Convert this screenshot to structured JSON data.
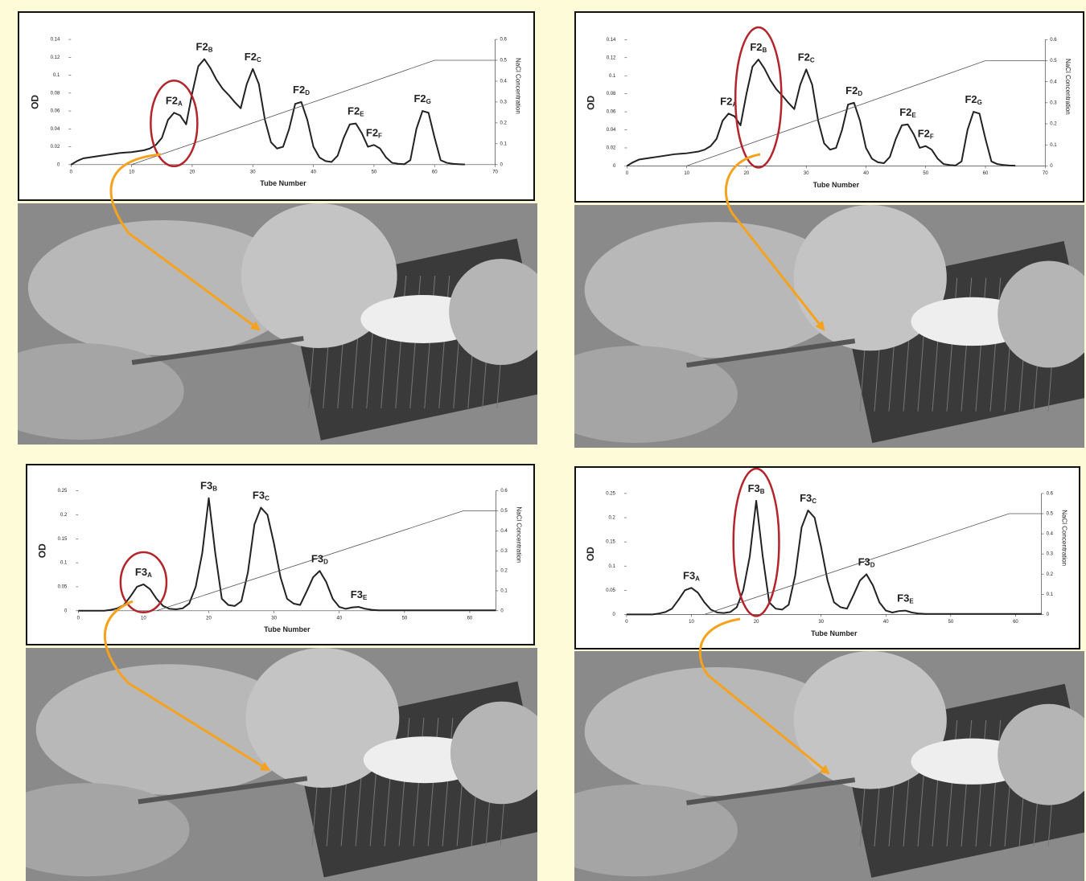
{
  "chart_data": [
    {
      "type": "line",
      "ylabel": "OD",
      "y2label": "NaCl Concentration",
      "xlabel": "Tube Number",
      "xlim": [
        0,
        70
      ],
      "xticks": [
        0,
        10,
        20,
        30,
        40,
        50,
        60,
        70
      ],
      "ylim": [
        0,
        0.14
      ],
      "yticks": [
        0,
        0.02,
        0.04,
        0.06,
        0.08,
        0.1,
        0.12,
        0.14
      ],
      "y2lim": [
        0,
        0.6
      ],
      "y2ticks": [
        0,
        0.1,
        0.2,
        0.3,
        0.4,
        0.5,
        0.6
      ],
      "series": [
        {
          "color": "#222222",
          "x": [
            0,
            1,
            2,
            3,
            4,
            5,
            6,
            7,
            8,
            9,
            10,
            11,
            12,
            13,
            14,
            15,
            16,
            17,
            18,
            19,
            20,
            21,
            22,
            23,
            24,
            25,
            26,
            27,
            28,
            29,
            30,
            31,
            32,
            33,
            34,
            35,
            36,
            37,
            38,
            39,
            40,
            41,
            42,
            43,
            44,
            45,
            46,
            47,
            48,
            49,
            50,
            51,
            52,
            53,
            54,
            55,
            56,
            57,
            58,
            59,
            60,
            61,
            62,
            63,
            64,
            65
          ],
          "values": [
            0,
            0.004,
            0.007,
            0.008,
            0.009,
            0.01,
            0.011,
            0.012,
            0.013,
            0.0135,
            0.014,
            0.015,
            0.016,
            0.018,
            0.022,
            0.03,
            0.05,
            0.058,
            0.055,
            0.045,
            0.08,
            0.11,
            0.118,
            0.108,
            0.095,
            0.085,
            0.078,
            0.07,
            0.063,
            0.09,
            0.107,
            0.09,
            0.05,
            0.025,
            0.018,
            0.02,
            0.04,
            0.068,
            0.07,
            0.05,
            0.02,
            0.008,
            0.004,
            0.003,
            0.01,
            0.03,
            0.045,
            0.046,
            0.035,
            0.02,
            0.022,
            0.018,
            0.008,
            0.002,
            0.001,
            0.0005,
            0.005,
            0.04,
            0.06,
            0.058,
            0.03,
            0.005,
            0.002,
            0.001,
            0.0005,
            0.0002
          ]
        },
        {
          "color": "#555555",
          "axis": "y2",
          "x": [
            10,
            60,
            70
          ],
          "values": [
            0,
            0.5,
            0.5
          ]
        }
      ],
      "annotations": [
        {
          "text": "F2",
          "sub": "A",
          "highlighted": true
        },
        {
          "text": "F2",
          "sub": "B"
        },
        {
          "text": "F2",
          "sub": "C"
        },
        {
          "text": "F2",
          "sub": "D"
        },
        {
          "text": "F2",
          "sub": "E"
        },
        {
          "text": "F2",
          "sub": "F"
        },
        {
          "text": "F2",
          "sub": "G"
        }
      ]
    },
    {
      "type": "line",
      "ylabel": "OD",
      "y2label": "NaCl Concentration",
      "xlabel": "Tube Number",
      "xlim": [
        0,
        70
      ],
      "xticks": [
        0,
        10,
        20,
        30,
        40,
        50,
        60,
        70
      ],
      "ylim": [
        0,
        0.14
      ],
      "yticks": [
        0,
        0.02,
        0.04,
        0.06,
        0.08,
        0.1,
        0.12,
        0.14
      ],
      "y2lim": [
        0,
        0.6
      ],
      "y2ticks": [
        0,
        0.1,
        0.2,
        0.3,
        0.4,
        0.5,
        0.6
      ],
      "series": [
        {
          "color": "#222222",
          "x": [
            0,
            1,
            2,
            3,
            4,
            5,
            6,
            7,
            8,
            9,
            10,
            11,
            12,
            13,
            14,
            15,
            16,
            17,
            18,
            19,
            20,
            21,
            22,
            23,
            24,
            25,
            26,
            27,
            28,
            29,
            30,
            31,
            32,
            33,
            34,
            35,
            36,
            37,
            38,
            39,
            40,
            41,
            42,
            43,
            44,
            45,
            46,
            47,
            48,
            49,
            50,
            51,
            52,
            53,
            54,
            55,
            56,
            57,
            58,
            59,
            60,
            61,
            62,
            63,
            64,
            65
          ],
          "values": [
            0,
            0.004,
            0.007,
            0.008,
            0.009,
            0.01,
            0.011,
            0.012,
            0.013,
            0.0135,
            0.014,
            0.015,
            0.016,
            0.018,
            0.022,
            0.03,
            0.05,
            0.058,
            0.055,
            0.045,
            0.08,
            0.11,
            0.118,
            0.108,
            0.095,
            0.085,
            0.078,
            0.07,
            0.063,
            0.09,
            0.107,
            0.09,
            0.05,
            0.025,
            0.018,
            0.02,
            0.04,
            0.068,
            0.07,
            0.05,
            0.02,
            0.008,
            0.004,
            0.003,
            0.01,
            0.03,
            0.045,
            0.046,
            0.035,
            0.02,
            0.022,
            0.018,
            0.008,
            0.002,
            0.001,
            0.0005,
            0.005,
            0.04,
            0.06,
            0.058,
            0.03,
            0.005,
            0.002,
            0.001,
            0.0005,
            0.0002
          ]
        },
        {
          "color": "#555555",
          "axis": "y2",
          "x": [
            10,
            60,
            70
          ],
          "values": [
            0,
            0.5,
            0.5
          ]
        }
      ],
      "annotations": [
        {
          "text": "F2",
          "sub": "A"
        },
        {
          "text": "F2",
          "sub": "B",
          "highlighted": true
        },
        {
          "text": "F2",
          "sub": "C"
        },
        {
          "text": "F2",
          "sub": "D"
        },
        {
          "text": "F2",
          "sub": "E"
        },
        {
          "text": "F2",
          "sub": "F"
        },
        {
          "text": "F2",
          "sub": "G"
        }
      ]
    },
    {
      "type": "line",
      "ylabel": "OD",
      "y2label": "NaCl Concentration",
      "xlabel": "Tube Number",
      "xlim": [
        0,
        64
      ],
      "xticks": [
        0,
        10,
        20,
        30,
        40,
        50,
        60
      ],
      "ylim": [
        0,
        0.25
      ],
      "yticks": [
        0,
        0.05,
        0.1,
        0.15,
        0.2,
        0.25
      ],
      "y2lim": [
        0,
        0.6
      ],
      "y2ticks": [
        0,
        0.1,
        0.2,
        0.3,
        0.4,
        0.5,
        0.6
      ],
      "series": [
        {
          "color": "#222222",
          "x": [
            0,
            1,
            2,
            3,
            4,
            5,
            6,
            7,
            8,
            9,
            10,
            11,
            12,
            13,
            14,
            15,
            16,
            17,
            18,
            19,
            20,
            21,
            22,
            23,
            24,
            25,
            26,
            27,
            28,
            29,
            30,
            31,
            32,
            33,
            34,
            35,
            36,
            37,
            38,
            39,
            40,
            41,
            42,
            43,
            44,
            45,
            46,
            47,
            48,
            49,
            50,
            51,
            52,
            53,
            54,
            55,
            56,
            57,
            58,
            59,
            60,
            61,
            62,
            63,
            64
          ],
          "values": [
            0,
            0,
            0,
            0,
            0,
            0.002,
            0.005,
            0.012,
            0.03,
            0.05,
            0.055,
            0.045,
            0.025,
            0.01,
            0.004,
            0.003,
            0.005,
            0.015,
            0.05,
            0.12,
            0.235,
            0.12,
            0.025,
            0.012,
            0.01,
            0.02,
            0.08,
            0.18,
            0.215,
            0.2,
            0.14,
            0.07,
            0.025,
            0.015,
            0.012,
            0.04,
            0.07,
            0.083,
            0.06,
            0.025,
            0.008,
            0.004,
            0.007,
            0.008,
            0.004,
            0.002,
            0.001,
            0.001,
            0.001,
            0.001,
            0.001,
            0.001,
            0.001,
            0.001,
            0.001,
            0.001,
            0.001,
            0.001,
            0.001,
            0.001,
            0.001,
            0.001,
            0.001,
            0.001,
            0.001
          ]
        },
        {
          "color": "#555555",
          "axis": "y2",
          "x": [
            12,
            59,
            64
          ],
          "values": [
            0,
            0.5,
            0.5
          ]
        }
      ],
      "annotations": [
        {
          "text": "F3",
          "sub": "A",
          "highlighted": true
        },
        {
          "text": "F3",
          "sub": "B"
        },
        {
          "text": "F3",
          "sub": "C"
        },
        {
          "text": "F3",
          "sub": "D"
        },
        {
          "text": "F3",
          "sub": "E"
        }
      ]
    },
    {
      "type": "line",
      "ylabel": "OD",
      "y2label": "NaCl Concentration",
      "xlabel": "Tube Number",
      "xlim": [
        0,
        64
      ],
      "xticks": [
        0,
        10,
        20,
        30,
        40,
        50,
        60
      ],
      "ylim": [
        0,
        0.25
      ],
      "yticks": [
        0,
        0.05,
        0.1,
        0.15,
        0.2,
        0.25
      ],
      "y2lim": [
        0,
        0.6
      ],
      "y2ticks": [
        0,
        0.1,
        0.2,
        0.3,
        0.4,
        0.5,
        0.6
      ],
      "series": [
        {
          "color": "#222222",
          "x": [
            0,
            1,
            2,
            3,
            4,
            5,
            6,
            7,
            8,
            9,
            10,
            11,
            12,
            13,
            14,
            15,
            16,
            17,
            18,
            19,
            20,
            21,
            22,
            23,
            24,
            25,
            26,
            27,
            28,
            29,
            30,
            31,
            32,
            33,
            34,
            35,
            36,
            37,
            38,
            39,
            40,
            41,
            42,
            43,
            44,
            45,
            46,
            47,
            48,
            49,
            50,
            51,
            52,
            53,
            54,
            55,
            56,
            57,
            58,
            59,
            60,
            61,
            62,
            63,
            64
          ],
          "values": [
            0,
            0,
            0,
            0,
            0,
            0.002,
            0.005,
            0.012,
            0.03,
            0.05,
            0.055,
            0.045,
            0.025,
            0.01,
            0.004,
            0.003,
            0.005,
            0.015,
            0.05,
            0.12,
            0.235,
            0.12,
            0.025,
            0.012,
            0.01,
            0.02,
            0.08,
            0.18,
            0.215,
            0.2,
            0.14,
            0.07,
            0.025,
            0.015,
            0.012,
            0.04,
            0.07,
            0.083,
            0.06,
            0.025,
            0.008,
            0.004,
            0.007,
            0.008,
            0.004,
            0.002,
            0.001,
            0.001,
            0.001,
            0.001,
            0.001,
            0.001,
            0.001,
            0.001,
            0.001,
            0.001,
            0.001,
            0.001,
            0.001,
            0.001,
            0.001,
            0.001,
            0.001,
            0.001,
            0.001
          ]
        },
        {
          "color": "#555555",
          "axis": "y2",
          "x": [
            12,
            59,
            64
          ],
          "values": [
            0,
            0.5,
            0.5
          ]
        }
      ],
      "annotations": [
        {
          "text": "F3",
          "sub": "A"
        },
        {
          "text": "F3",
          "sub": "B",
          "highlighted": true
        },
        {
          "text": "F3",
          "sub": "C"
        },
        {
          "text": "F3",
          "sub": "D"
        },
        {
          "text": "F3",
          "sub": "E"
        }
      ]
    }
  ]
}
